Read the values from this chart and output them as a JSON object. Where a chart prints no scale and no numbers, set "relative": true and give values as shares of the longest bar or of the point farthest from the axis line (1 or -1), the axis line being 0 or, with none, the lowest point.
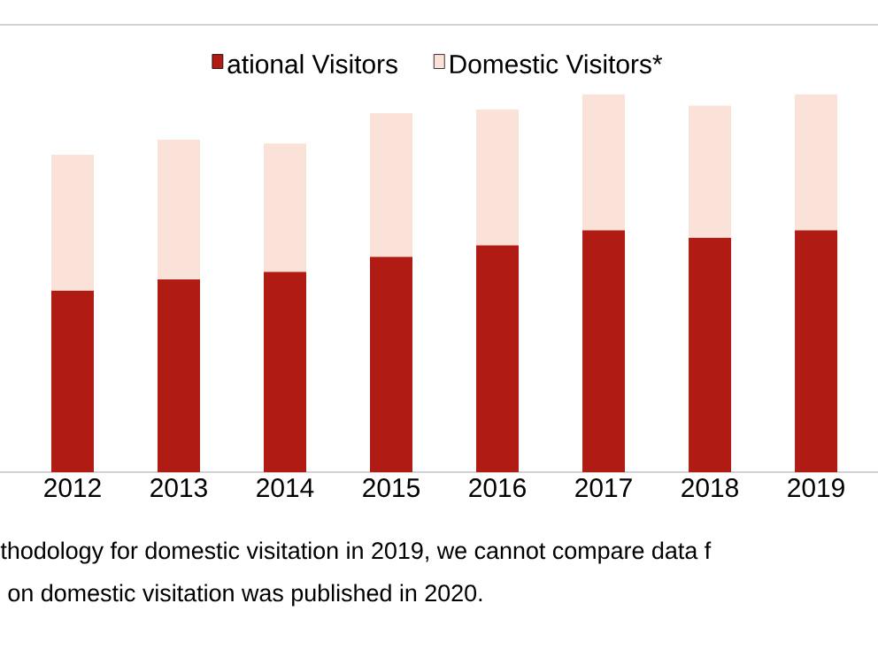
{
  "chart_data": {
    "type": "bar",
    "stacked": true,
    "relative": true,
    "legend": "top",
    "categories": [
      "2012",
      "2013",
      "2014",
      "2015",
      "2016",
      "2017",
      "2018",
      "2019"
    ],
    "series": [
      {
        "name": "ational Visitors",
        "color": "#b01c14",
        "values": [
          0.48,
          0.51,
          0.53,
          0.57,
          0.6,
          0.64,
          0.62,
          0.64
        ]
      },
      {
        "name": "Domestic Visitors*",
        "color": "#fbe2d9",
        "values": [
          0.36,
          0.37,
          0.34,
          0.38,
          0.36,
          0.36,
          0.35,
          0.36
        ]
      }
    ],
    "annotations": [
      "thodology for domestic visitation in 2019, we cannot compare data f",
      "on domestic visitation was published in 2020."
    ]
  }
}
